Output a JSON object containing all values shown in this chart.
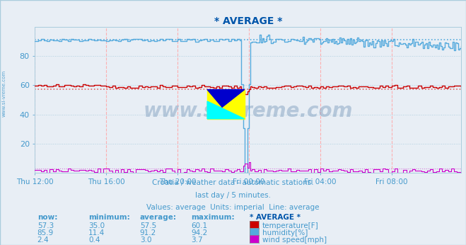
{
  "title": "* AVERAGE *",
  "title_color": "#0055aa",
  "background_color": "#e8eef5",
  "plot_bg_color": "#e8eef5",
  "text_color": "#4499cc",
  "ylim": [
    0,
    100
  ],
  "yticks": [
    20,
    40,
    60,
    80
  ],
  "x_labels": [
    "Thu 12:00",
    "Thu 16:00",
    "Thu 20:00",
    "Fri 00:00",
    "Fri 04:00",
    "Fri 08:00"
  ],
  "n_points": 288,
  "temperature_avg": 57.5,
  "humidity_avg": 91.2,
  "wind_avg": 3.0,
  "temp_color": "#cc0000",
  "humidity_color": "#55aadd",
  "wind_color": "#cc00cc",
  "avg_temp_dotted_color": "#dd6666",
  "avg_humidity_dotted_color": "#55aadd",
  "avg_wind_dotted_color": "#cc44cc",
  "watermark": "www.si-vreme.com",
  "footer_line1": "Croatia / weather data - automatic stations.",
  "footer_line2": "last day / 5 minutes.",
  "footer_line3": "Values: average  Units: imperial  Line: average",
  "stats_headers": [
    "now:",
    "minimum:",
    "average:",
    "maximum:",
    "* AVERAGE *"
  ],
  "stats_temp": [
    "57.3",
    "35.0",
    "57.5",
    "60.1"
  ],
  "stats_humidity": [
    "85.9",
    "11.4",
    "91.2",
    "94.2"
  ],
  "stats_wind": [
    "2.4",
    "0.4",
    "3.0",
    "3.7"
  ],
  "legend_labels": [
    "temperature[F]",
    "humidity[%]",
    "wind speed[mph]"
  ],
  "legend_colors": [
    "#cc0000",
    "#55aadd",
    "#cc00cc"
  ],
  "vgrid_color": "#ffaaaa",
  "hgrid_color": "#aaccdd"
}
